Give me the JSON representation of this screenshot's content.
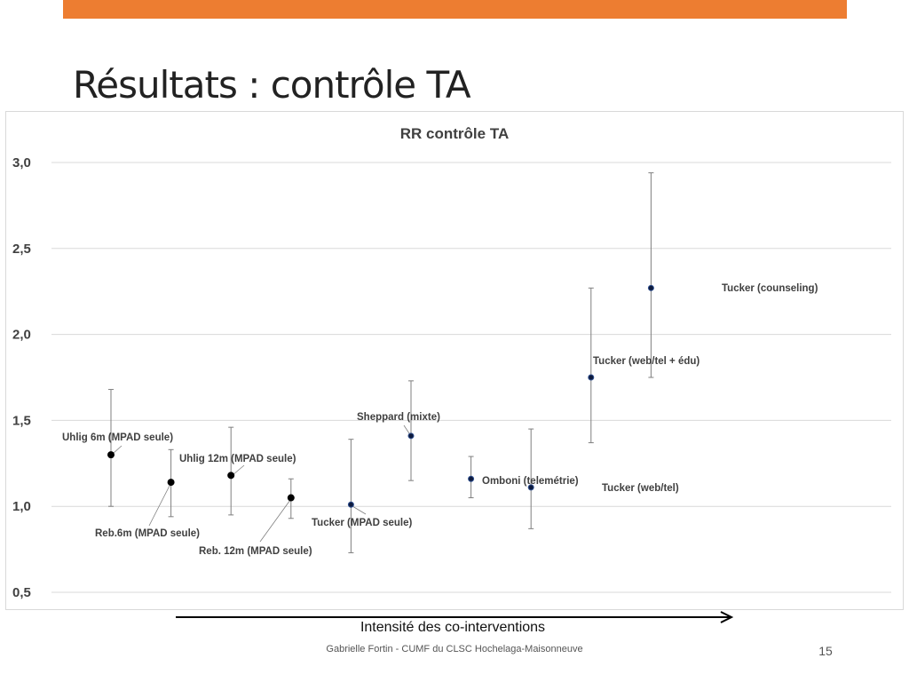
{
  "slide": {
    "title": "Résultats : contrôle TA",
    "accent_color": "#ed7d31",
    "footer": "Gabrielle Fortin - CUMF du CLSC Hochelaga-Maisonneuve",
    "page_number": "15",
    "x_axis_caption": "Intensité des co-interventions"
  },
  "chart_data": {
    "type": "scatter",
    "title": "RR contrôle TA",
    "xlabel": "",
    "ylabel": "",
    "ylim": [
      0.5,
      3.0
    ],
    "yticks": [
      "0,5",
      "1,0",
      "1,5",
      "2,0",
      "2,5",
      "3,0"
    ],
    "grid": true,
    "legend": "none",
    "colors": {
      "black_points": "#000000",
      "navy_points": "#0d1a3d",
      "error_bar": "#7f7f7f",
      "gridline": "#d9d9d9",
      "leader_line": "#7f7f7f"
    },
    "points": [
      {
        "label": "Uhlig 6m (MPAD seule)",
        "x": 1,
        "y": 1.3,
        "low": 1.0,
        "high": 1.68,
        "color": "black"
      },
      {
        "label": "Reb.6m (MPAD seule)",
        "x": 2,
        "y": 1.14,
        "low": 0.94,
        "high": 1.33,
        "color": "black"
      },
      {
        "label": "Uhlig 12m (MPAD seule)",
        "x": 3,
        "y": 1.18,
        "low": 0.95,
        "high": 1.46,
        "color": "black"
      },
      {
        "label": "Reb. 12m (MPAD seule)",
        "x": 4,
        "y": 1.05,
        "low": 0.93,
        "high": 1.16,
        "color": "black"
      },
      {
        "label": "Tucker (MPAD seule)",
        "x": 5,
        "y": 1.01,
        "low": 0.73,
        "high": 1.39,
        "color": "navy"
      },
      {
        "label": "Sheppard (mixte)",
        "x": 6,
        "y": 1.41,
        "low": 1.15,
        "high": 1.73,
        "color": "navy"
      },
      {
        "label": "Omboni (telemétrie)",
        "x": 7,
        "y": 1.16,
        "low": 1.05,
        "high": 1.29,
        "color": "navy"
      },
      {
        "label": "Tucker (web/tel)",
        "x": 8,
        "y": 1.11,
        "low": 0.87,
        "high": 1.45,
        "color": "navy"
      },
      {
        "label": "Tucker (web/tel + édu)",
        "x": 9,
        "y": 1.75,
        "low": 1.37,
        "high": 2.27,
        "color": "navy"
      },
      {
        "label": "Tucker (counseling)",
        "x": 10,
        "y": 2.27,
        "low": 1.75,
        "high": 2.94,
        "color": "navy"
      }
    ]
  }
}
